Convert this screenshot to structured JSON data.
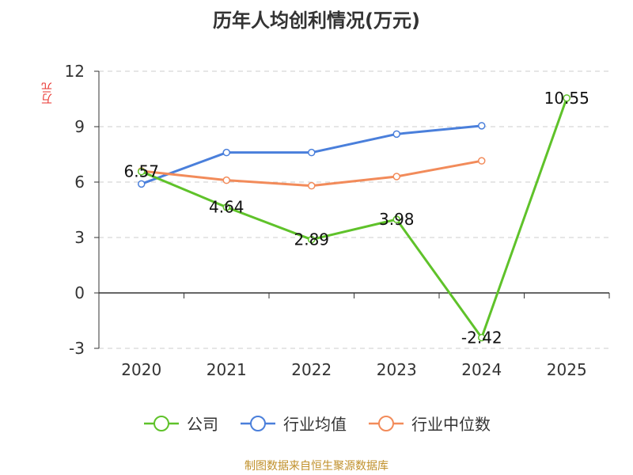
{
  "chart_data": {
    "type": "line",
    "title": "历年人均创利情况(万元)",
    "ylabel": "万元",
    "xlabel": "",
    "categories": [
      "2020",
      "2021",
      "2022",
      "2023",
      "2024",
      "2025"
    ],
    "ylim": [
      -3,
      12
    ],
    "yticks": [
      -3,
      0,
      3,
      6,
      9,
      12
    ],
    "grid": true,
    "legend_position": "bottom",
    "series": [
      {
        "name": "公司",
        "color": "#5fc22a",
        "values": [
          6.57,
          4.64,
          2.89,
          3.98,
          -2.42,
          10.55
        ],
        "labels": [
          "6.57",
          "4.64",
          "2.89",
          "3.98",
          "-2.42",
          "10.55"
        ]
      },
      {
        "name": "行业均值",
        "color": "#4a7fdb",
        "values": [
          5.9,
          7.6,
          7.6,
          8.6,
          9.05,
          null
        ]
      },
      {
        "name": "行业中位数",
        "color": "#f28b5a",
        "values": [
          6.6,
          6.1,
          5.8,
          6.3,
          7.15,
          null
        ]
      }
    ]
  },
  "source": "制图数据来自恒生聚源数据库"
}
